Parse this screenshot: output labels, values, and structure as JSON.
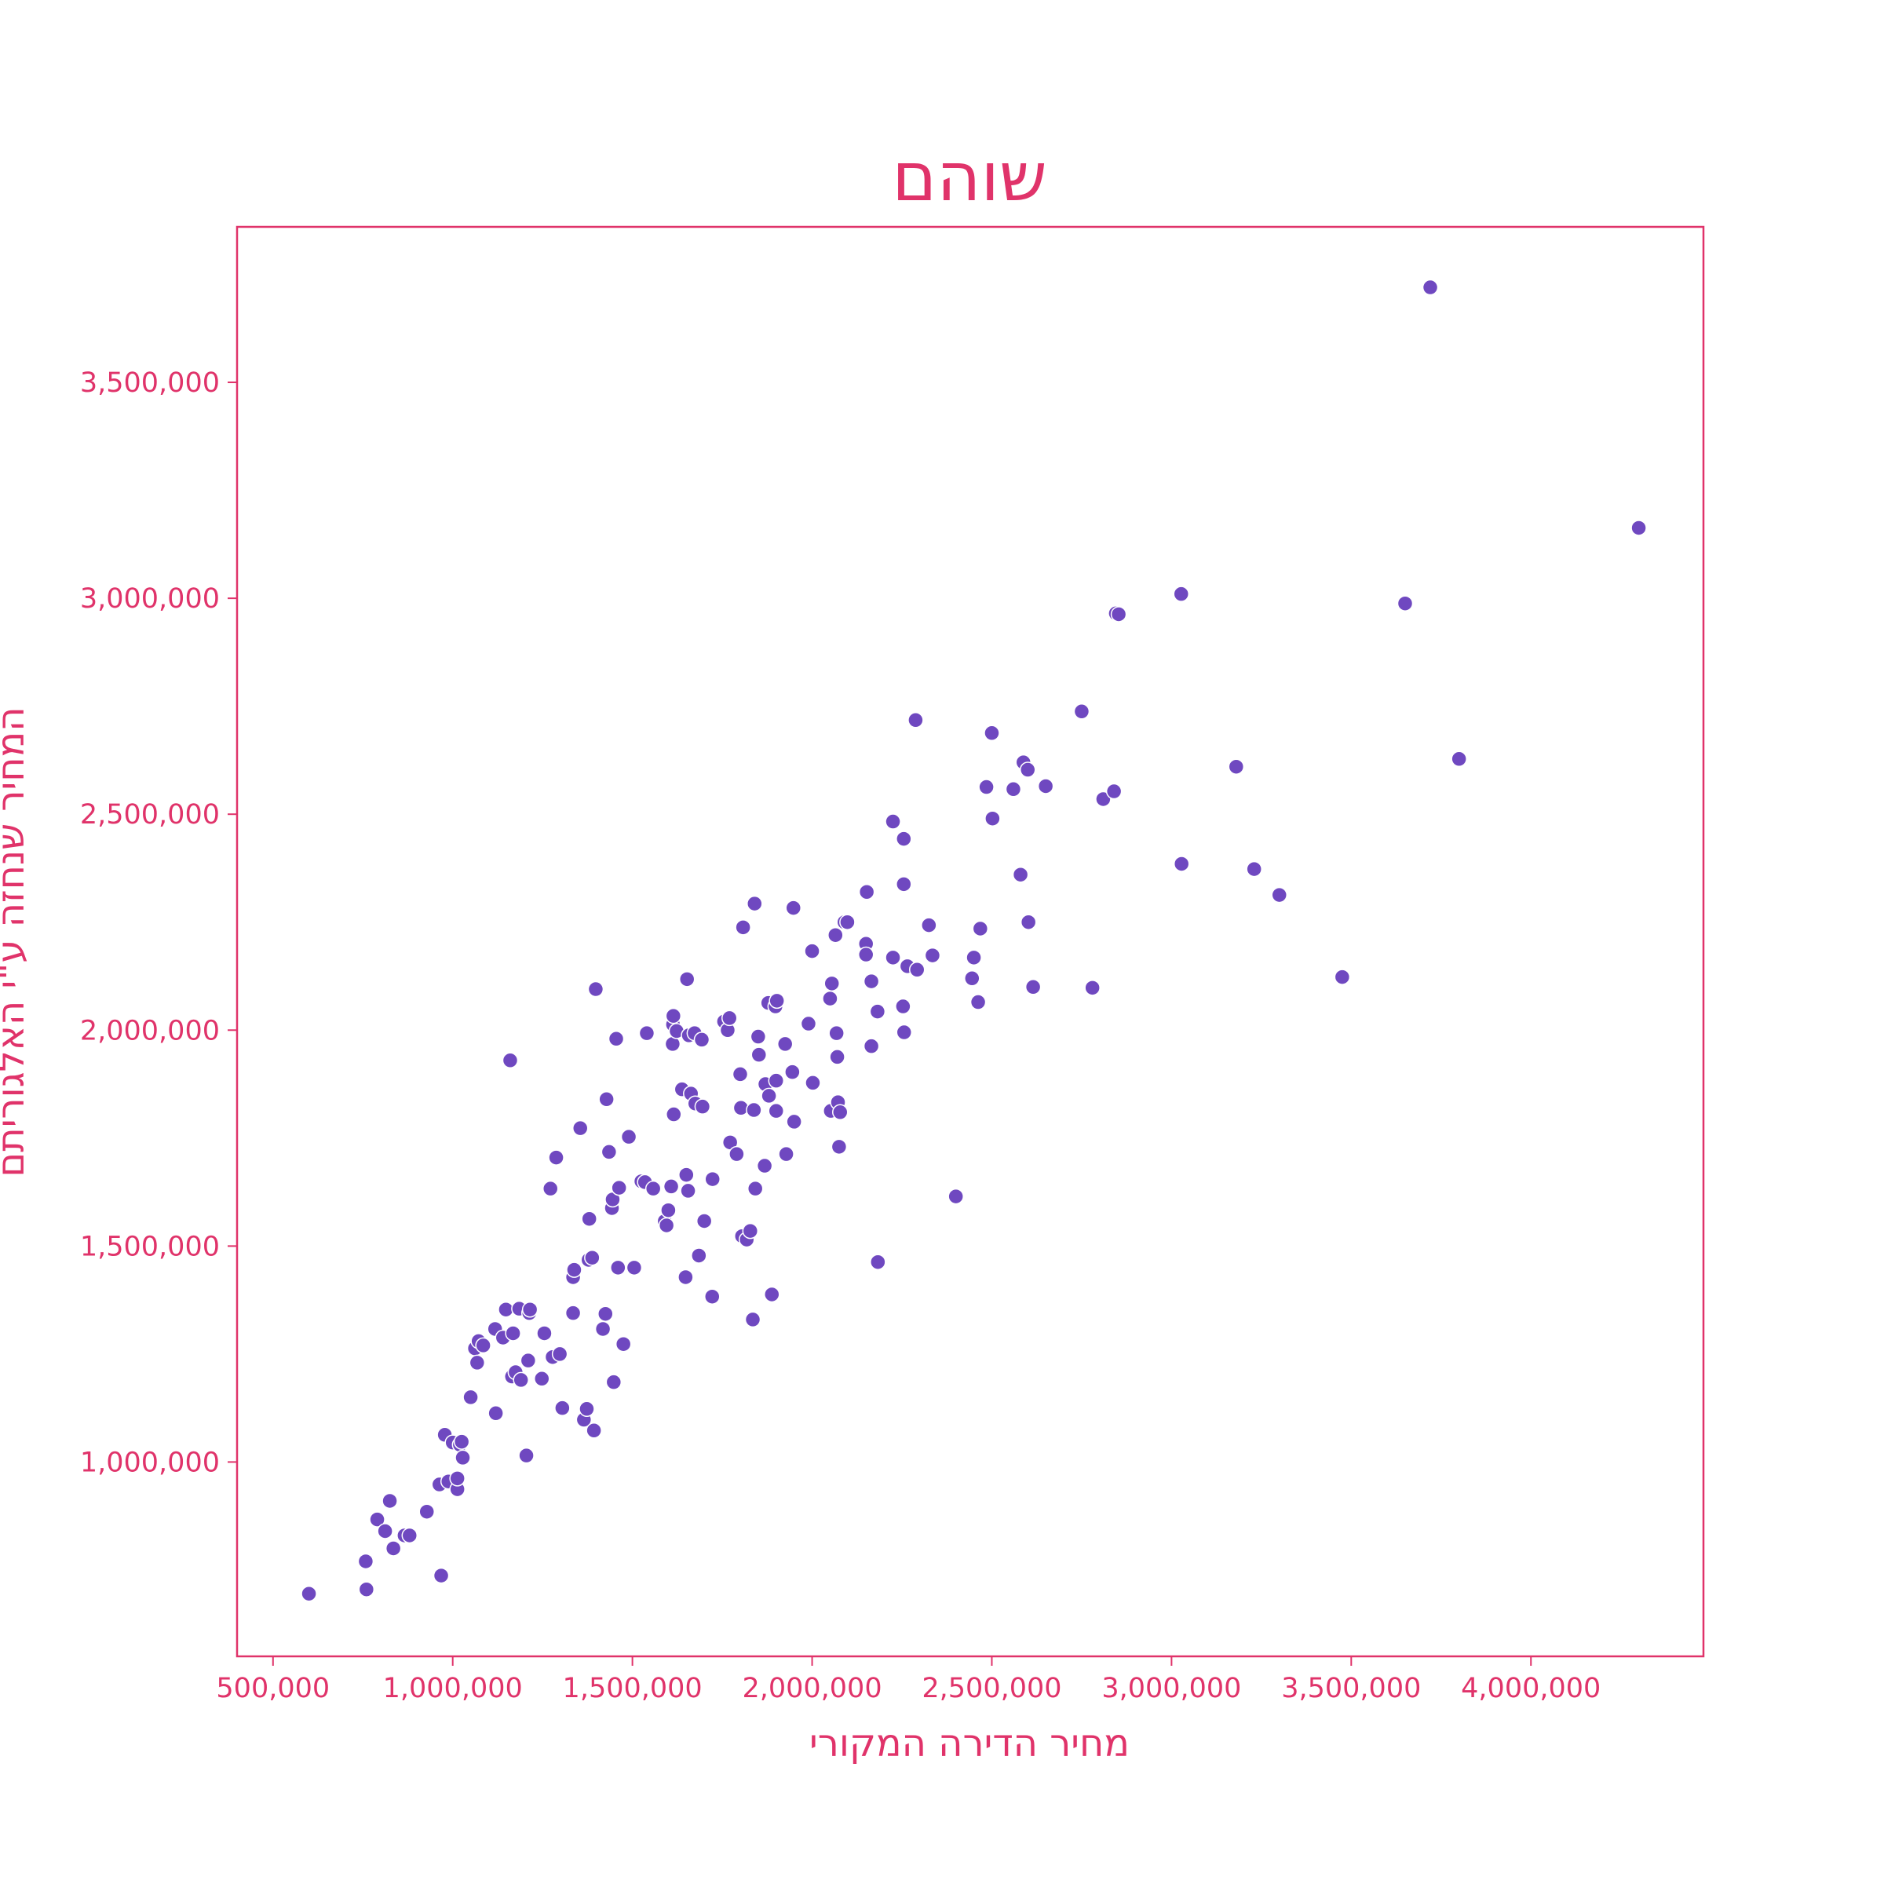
{
  "chart_data": {
    "type": "scatter",
    "title": "שוהם",
    "xlabel": "מחיר הדירה המקורי",
    "ylabel": "המחיר שנחזה ע\"י האלגוריתם",
    "xlim": [
      400000,
      4480000
    ],
    "ylim": [
      550000,
      3860000
    ],
    "x_ticks": [
      500000,
      1000000,
      1500000,
      2000000,
      2500000,
      3000000,
      3500000,
      4000000
    ],
    "x_tick_labels": [
      "500,000",
      "1,000,000",
      "1,500,000",
      "2,000,000",
      "2,500,000",
      "3,000,000",
      "3,500,000",
      "4,000,000"
    ],
    "y_ticks": [
      1000000,
      1500000,
      2000000,
      2500000,
      3000000,
      3500000
    ],
    "y_tick_labels": [
      "1,000,000",
      "1,500,000",
      "2,000,000",
      "2,500,000",
      "3,000,000",
      "3,500,000"
    ],
    "grid": false,
    "colors": {
      "text": "#e0336a",
      "frame": "#e0336a",
      "points": "#6f48c0"
    },
    "points": [
      [
        600000,
        695000
      ],
      [
        760000,
        705000
      ],
      [
        758000,
        770000
      ],
      [
        790000,
        867000
      ],
      [
        812000,
        840000
      ],
      [
        825000,
        910000
      ],
      [
        835000,
        800000
      ],
      [
        866000,
        830000
      ],
      [
        880000,
        830000
      ],
      [
        928000,
        885000
      ],
      [
        963000,
        948000
      ],
      [
        968000,
        737000
      ],
      [
        978000,
        1063000
      ],
      [
        988000,
        955000
      ],
      [
        1000000,
        1045000
      ],
      [
        1013000,
        937000
      ],
      [
        1013000,
        962000
      ],
      [
        1020000,
        1040000
      ],
      [
        1025000,
        1047000
      ],
      [
        1028000,
        1010000
      ],
      [
        1050000,
        1150000
      ],
      [
        1062000,
        1263000
      ],
      [
        1068000,
        1230000
      ],
      [
        1072000,
        1280000
      ],
      [
        1085000,
        1270000
      ],
      [
        1118000,
        1308000
      ],
      [
        1120000,
        1113000
      ],
      [
        1140000,
        1288000
      ],
      [
        1148000,
        1353000
      ],
      [
        1160000,
        1930000
      ],
      [
        1165000,
        1198000
      ],
      [
        1168000,
        1298000
      ],
      [
        1175000,
        1208000
      ],
      [
        1185000,
        1355000
      ],
      [
        1190000,
        1190000
      ],
      [
        1205000,
        1015000
      ],
      [
        1210000,
        1235000
      ],
      [
        1213000,
        1345000
      ],
      [
        1215000,
        1353000
      ],
      [
        1248000,
        1193000
      ],
      [
        1255000,
        1298000
      ],
      [
        1272000,
        1633000
      ],
      [
        1278000,
        1243000
      ],
      [
        1288000,
        1705000
      ],
      [
        1298000,
        1250000
      ],
      [
        1305000,
        1125000
      ],
      [
        1335000,
        1345000
      ],
      [
        1335000,
        1428000
      ],
      [
        1338000,
        1445000
      ],
      [
        1355000,
        1773000
      ],
      [
        1365000,
        1098000
      ],
      [
        1373000,
        1123000
      ],
      [
        1378000,
        1468000
      ],
      [
        1380000,
        1563000
      ],
      [
        1388000,
        1473000
      ],
      [
        1393000,
        1073000
      ],
      [
        1398000,
        2095000
      ],
      [
        1418000,
        1308000
      ],
      [
        1425000,
        1343000
      ],
      [
        1428000,
        1840000
      ],
      [
        1435000,
        1718000
      ],
      [
        1443000,
        1588000
      ],
      [
        1445000,
        1608000
      ],
      [
        1448000,
        1185000
      ],
      [
        1455000,
        1980000
      ],
      [
        1460000,
        1450000
      ],
      [
        1463000,
        1635000
      ],
      [
        1475000,
        1273000
      ],
      [
        1490000,
        1753000
      ],
      [
        1505000,
        1450000
      ],
      [
        1525000,
        1650000
      ],
      [
        1535000,
        1648000
      ],
      [
        1540000,
        1993000
      ],
      [
        1558000,
        1633000
      ],
      [
        1590000,
        1558000
      ],
      [
        1595000,
        1548000
      ],
      [
        1600000,
        1583000
      ],
      [
        1608000,
        1638000
      ],
      [
        1612000,
        1968000
      ],
      [
        1613000,
        2013000
      ],
      [
        1614000,
        2033000
      ],
      [
        1615000,
        1805000
      ],
      [
        1623000,
        1998000
      ],
      [
        1638000,
        1863000
      ],
      [
        1648000,
        1428000
      ],
      [
        1650000,
        1665000
      ],
      [
        1652000,
        2118000
      ],
      [
        1655000,
        1628000
      ],
      [
        1657000,
        1988000
      ],
      [
        1663000,
        1853000
      ],
      [
        1673000,
        1993000
      ],
      [
        1675000,
        1830000
      ],
      [
        1685000,
        1478000
      ],
      [
        1693000,
        1978000
      ],
      [
        1695000,
        1823000
      ],
      [
        1700000,
        1558000
      ],
      [
        1722000,
        1383000
      ],
      [
        1723000,
        1655000
      ],
      [
        1755000,
        2020000
      ],
      [
        1765000,
        2000000
      ],
      [
        1770000,
        2028000
      ],
      [
        1772000,
        1740000
      ],
      [
        1790000,
        1713000
      ],
      [
        1800000,
        1898000
      ],
      [
        1802000,
        1820000
      ],
      [
        1805000,
        1523000
      ],
      [
        1808000,
        2238000
      ],
      [
        1818000,
        1515000
      ],
      [
        1828000,
        1535000
      ],
      [
        1835000,
        1330000
      ],
      [
        1838000,
        1815000
      ],
      [
        1840000,
        2293000
      ],
      [
        1842000,
        1633000
      ],
      [
        1850000,
        1985000
      ],
      [
        1852000,
        1943000
      ],
      [
        1868000,
        1686000
      ],
      [
        1870000,
        1875000
      ],
      [
        1878000,
        2063000
      ],
      [
        1880000,
        1848000
      ],
      [
        1888000,
        1388000
      ],
      [
        1898000,
        2055000
      ],
      [
        1900000,
        1883000
      ],
      [
        1900000,
        1813000
      ],
      [
        1902000,
        2068000
      ],
      [
        1925000,
        1968000
      ],
      [
        1928000,
        1713000
      ],
      [
        1945000,
        1903000
      ],
      [
        1948000,
        2283000
      ],
      [
        1950000,
        1788000
      ],
      [
        1990000,
        2015000
      ],
      [
        2000000,
        2183000
      ],
      [
        2002000,
        1878000
      ],
      [
        2050000,
        2073000
      ],
      [
        2052000,
        1813000
      ],
      [
        2055000,
        2108000
      ],
      [
        2065000,
        2220000
      ],
      [
        2068000,
        1993000
      ],
      [
        2070000,
        1938000
      ],
      [
        2072000,
        1833000
      ],
      [
        2075000,
        1730000
      ],
      [
        2078000,
        1810000
      ],
      [
        2090000,
        2250000
      ],
      [
        2098000,
        2250000
      ],
      [
        2150000,
        2200000
      ],
      [
        2150000,
        2175000
      ],
      [
        2152000,
        2320000
      ],
      [
        2165000,
        2113000
      ],
      [
        2165000,
        1963000
      ],
      [
        2182000,
        2043000
      ],
      [
        2183000,
        1463000
      ],
      [
        2225000,
        2483000
      ],
      [
        2225000,
        2168000
      ],
      [
        2253000,
        2055000
      ],
      [
        2255000,
        2443000
      ],
      [
        2255000,
        2338000
      ],
      [
        2256000,
        1995000
      ],
      [
        2265000,
        2148000
      ],
      [
        2288000,
        2718000
      ],
      [
        2292000,
        2140000
      ],
      [
        2325000,
        2243000
      ],
      [
        2335000,
        2173000
      ],
      [
        2400000,
        1615000
      ],
      [
        2445000,
        2120000
      ],
      [
        2450000,
        2168000
      ],
      [
        2462000,
        2065000
      ],
      [
        2468000,
        2235000
      ],
      [
        2485000,
        2563000
      ],
      [
        2500000,
        2688000
      ],
      [
        2502000,
        2490000
      ],
      [
        2560000,
        2558000
      ],
      [
        2580000,
        2360000
      ],
      [
        2588000,
        2620000
      ],
      [
        2600000,
        2603000
      ],
      [
        2602000,
        2250000
      ],
      [
        2615000,
        2100000
      ],
      [
        2650000,
        2565000
      ],
      [
        2750000,
        2738000
      ],
      [
        2780000,
        2098000
      ],
      [
        2810000,
        2535000
      ],
      [
        2840000,
        2553000
      ],
      [
        2845000,
        2965000
      ],
      [
        2853000,
        2963000
      ],
      [
        3027000,
        3010000
      ],
      [
        3028000,
        2385000
      ],
      [
        3180000,
        2610000
      ],
      [
        3230000,
        2373000
      ],
      [
        3300000,
        2313000
      ],
      [
        3475000,
        2123000
      ],
      [
        3650000,
        2988000
      ],
      [
        3720000,
        3720000
      ],
      [
        3800000,
        2628000
      ],
      [
        4300000,
        3163000
      ]
    ]
  }
}
